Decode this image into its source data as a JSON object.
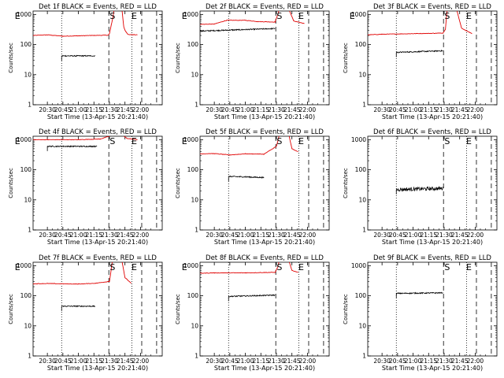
{
  "chart_data": {
    "type": "line",
    "x_tick_labels": [
      "20:30",
      "20:45",
      "21:00",
      "21:15",
      "21:30",
      "21:45",
      "22:00"
    ],
    "y_tick_labels": [
      "1",
      "10",
      "100",
      "1000"
    ],
    "y_scale": "log",
    "xlabel": "Start Time (13-Apr-15 20:21:40)",
    "ylabel": "Counts/sec",
    "ylim": [
      1,
      1300
    ],
    "colors": {
      "events": "#000000",
      "lld": "#e00000",
      "axes": "#000000"
    },
    "markers": {
      "start": "S",
      "end": "E"
    },
    "panels": [
      {
        "title": "Det 1f BLACK = Events, RED = LLD",
        "events": [
          [
            20.73,
            42
          ],
          [
            21.27,
            42
          ]
        ],
        "lld": [
          [
            20.27,
            200
          ],
          [
            20.5,
            210
          ],
          [
            20.75,
            190
          ],
          [
            21.0,
            195
          ],
          [
            21.2,
            200
          ],
          [
            21.48,
            205
          ],
          [
            21.5,
            230
          ],
          [
            21.55,
            700
          ],
          [
            21.58,
            1600
          ],
          [
            21.7,
            1600
          ],
          [
            21.73,
            400
          ],
          [
            21.75,
            300
          ],
          [
            21.8,
            215
          ],
          [
            21.95,
            210
          ]
        ],
        "vlines": {
          "dotted": [
            20.73,
            21.86
          ],
          "dashed": [
            21.49,
            22.02,
            22.26
          ],
          "dashed2": []
        },
        "marks": [
          [
            "E",
            20.02
          ],
          [
            "S",
            21.55
          ],
          [
            "E",
            21.9
          ]
        ]
      },
      {
        "title": "Det 2f BLACK = Events, RED = LLD",
        "events": [
          [
            20.27,
            280
          ],
          [
            20.9,
            310
          ],
          [
            21.3,
            330
          ],
          [
            21.48,
            340
          ]
        ],
        "lld": [
          [
            20.27,
            470
          ],
          [
            20.5,
            480
          ],
          [
            20.7,
            640
          ],
          [
            21.0,
            640
          ],
          [
            21.2,
            580
          ],
          [
            21.48,
            560
          ],
          [
            21.55,
            1500
          ],
          [
            21.7,
            1500
          ],
          [
            21.78,
            600
          ],
          [
            21.95,
            500
          ]
        ],
        "vlines": {
          "dotted": [
            20.73,
            21.86
          ],
          "dashed": [
            21.49,
            22.02,
            22.26
          ],
          "dashed2": []
        },
        "marks": [
          [
            "E",
            20.02
          ],
          [
            "S",
            21.55
          ],
          [
            "E",
            21.9
          ]
        ]
      },
      {
        "title": "Det 3f BLACK = Events, RED = LLD",
        "events": [
          [
            20.73,
            55
          ],
          [
            21.48,
            62
          ]
        ],
        "lld": [
          [
            20.27,
            210
          ],
          [
            20.5,
            220
          ],
          [
            21.0,
            230
          ],
          [
            21.48,
            240
          ],
          [
            21.52,
            320
          ],
          [
            21.55,
            1500
          ],
          [
            21.7,
            1500
          ],
          [
            21.78,
            350
          ],
          [
            21.95,
            230
          ]
        ],
        "vlines": {
          "dotted": [
            20.73,
            21.86
          ],
          "dashed": [
            21.49,
            22.02,
            22.26
          ],
          "dashed2": []
        },
        "marks": [
          [
            "E",
            20.02
          ],
          [
            "S",
            21.55
          ],
          [
            "E",
            21.9
          ]
        ]
      },
      {
        "title": "Det 4f BLACK = Events, RED = LLD",
        "events": [
          [
            20.5,
            600
          ],
          [
            21.3,
            600
          ]
        ],
        "lld": [
          [
            20.27,
            1000
          ],
          [
            20.5,
            1000
          ],
          [
            21.0,
            1000
          ],
          [
            21.35,
            1050
          ],
          [
            21.5,
            1300
          ],
          [
            21.55,
            1500
          ],
          [
            21.7,
            1500
          ],
          [
            21.78,
            1100
          ],
          [
            21.95,
            1000
          ]
        ],
        "vlines": {
          "dotted": [
            20.73,
            21.86
          ],
          "dashed": [
            21.49,
            22.02,
            22.26
          ],
          "dashed2": []
        },
        "marks": [
          [
            "E",
            20.02
          ],
          [
            "S",
            21.55
          ],
          [
            "E",
            21.9
          ]
        ]
      },
      {
        "title": "Det 5f BLACK = Events, RED = LLD",
        "events": [
          [
            20.73,
            60
          ],
          [
            21.0,
            58
          ],
          [
            21.3,
            55
          ]
        ],
        "lld": [
          [
            20.27,
            340
          ],
          [
            20.5,
            345
          ],
          [
            20.75,
            310
          ],
          [
            21.0,
            340
          ],
          [
            21.3,
            330
          ],
          [
            21.5,
            600
          ],
          [
            21.55,
            1500
          ],
          [
            21.7,
            1500
          ],
          [
            21.75,
            500
          ],
          [
            21.85,
            400
          ]
        ],
        "vlines": {
          "dotted": [
            20.73,
            21.86
          ],
          "dashed": [
            21.49,
            22.02,
            22.26
          ],
          "dashed2": []
        },
        "marks": [
          [
            "E",
            20.02
          ],
          [
            "S",
            21.55
          ],
          [
            "E",
            21.9
          ]
        ]
      },
      {
        "title": "Det 6f BLACK = Events, RED = LLD",
        "events": [
          [
            20.73,
            22
          ],
          [
            21.48,
            24
          ]
        ],
        "lld": [],
        "vlines": {
          "dotted": [
            20.73,
            21.86
          ],
          "dashed": [
            21.49,
            22.02,
            22.26
          ],
          "dashed2": []
        },
        "marks": [
          [
            "S",
            21.55
          ],
          [
            "E",
            21.9
          ]
        ]
      },
      {
        "title": "Det 7f BLACK = Events, RED = LLD",
        "events": [
          [
            20.73,
            45
          ],
          [
            21.27,
            45
          ]
        ],
        "lld": [
          [
            20.27,
            250
          ],
          [
            20.5,
            255
          ],
          [
            21.0,
            245
          ],
          [
            21.27,
            260
          ],
          [
            21.5,
            300
          ],
          [
            21.55,
            1500
          ],
          [
            21.7,
            1500
          ],
          [
            21.75,
            400
          ],
          [
            21.85,
            260
          ]
        ],
        "vlines": {
          "dotted": [
            20.73,
            21.86
          ],
          "dashed": [
            21.49,
            22.02,
            22.26
          ],
          "dashed2": []
        },
        "marks": [
          [
            "E",
            20.02
          ],
          [
            "S",
            21.55
          ],
          [
            "E",
            21.9
          ]
        ]
      },
      {
        "title": "Det 8f BLACK = Events, RED = LLD",
        "events": [
          [
            20.73,
            95
          ],
          [
            21.48,
            105
          ]
        ],
        "lld": [
          [
            20.27,
            560
          ],
          [
            20.5,
            575
          ],
          [
            21.0,
            580
          ],
          [
            21.48,
            600
          ],
          [
            21.52,
            900
          ],
          [
            21.55,
            1500
          ],
          [
            21.7,
            1500
          ],
          [
            21.75,
            700
          ],
          [
            21.85,
            600
          ]
        ],
        "vlines": {
          "dotted": [
            20.73,
            21.86
          ],
          "dashed": [
            21.49,
            22.02,
            22.26
          ],
          "dashed2": []
        },
        "marks": [
          [
            "E",
            20.02
          ],
          [
            "S",
            21.55
          ],
          [
            "E",
            21.9
          ]
        ]
      },
      {
        "title": "Det 9f BLACK = Events, RED = LLD",
        "events": [
          [
            20.73,
            120
          ],
          [
            21.48,
            125
          ]
        ],
        "lld": [],
        "vlines": {
          "dotted": [
            20.73,
            21.86
          ],
          "dashed": [
            21.49,
            22.02,
            22.26
          ],
          "dashed2": []
        },
        "marks": [
          [
            "S",
            21.55
          ],
          [
            "E",
            21.9
          ]
        ]
      }
    ]
  }
}
